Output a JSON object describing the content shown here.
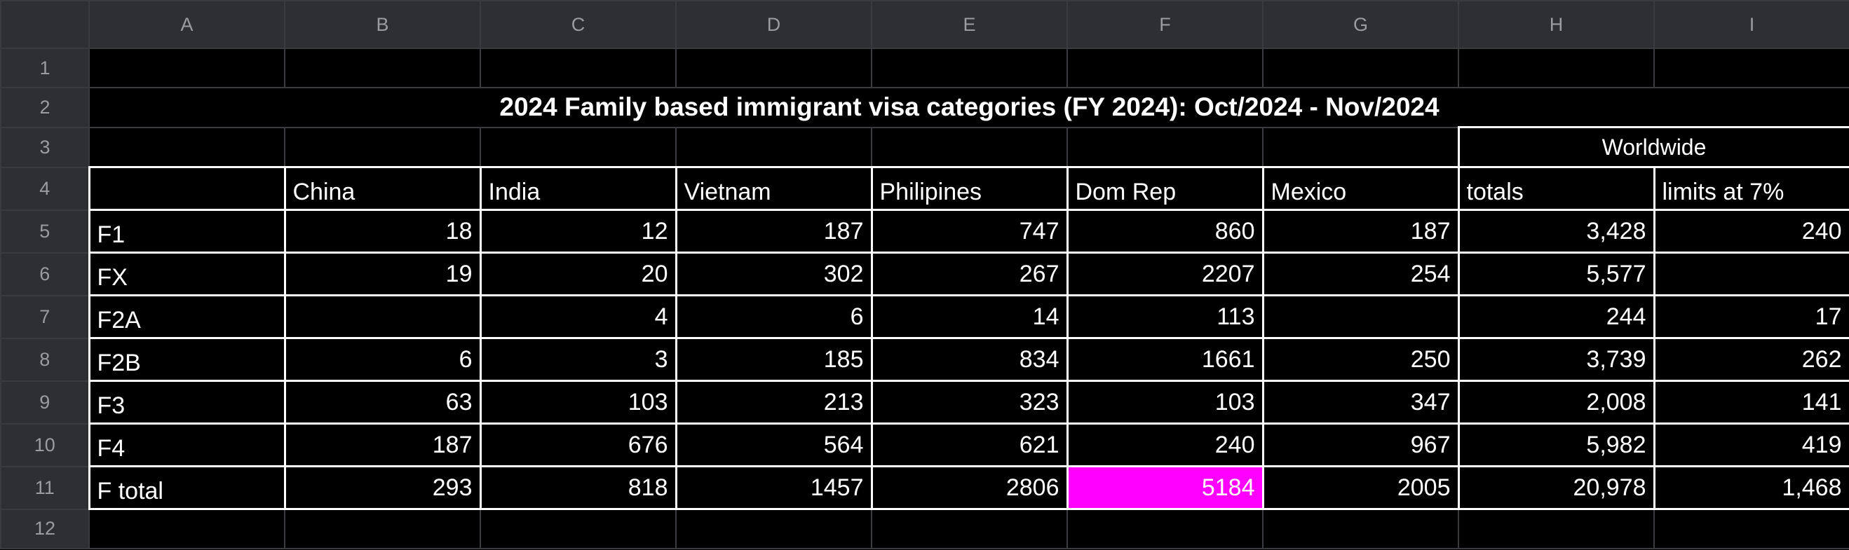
{
  "columns": [
    "A",
    "B",
    "C",
    "D",
    "E",
    "F",
    "G",
    "H",
    "I"
  ],
  "row_numbers": [
    "1",
    "2",
    "3",
    "4",
    "5",
    "6",
    "7",
    "8",
    "9",
    "10",
    "11",
    "12"
  ],
  "title": "2024 Family based immigrant visa categories (FY 2024): Oct/2024 - Nov/2024",
  "worldwide_label": "Worldwide",
  "headers": [
    "",
    "China",
    "India",
    "Vietnam",
    "Philipines",
    "Dom Rep",
    "Mexico",
    "totals",
    "limits at 7%"
  ],
  "rows": [
    [
      "F1",
      "18",
      "12",
      "187",
      "747",
      "860",
      "187",
      "3,428",
      "240"
    ],
    [
      "FX",
      "19",
      "20",
      "302",
      "267",
      "2207",
      "254",
      "5,577",
      ""
    ],
    [
      "F2A",
      "",
      "4",
      "6",
      "14",
      "113",
      "",
      "244",
      "17"
    ],
    [
      "F2B",
      "6",
      "3",
      "185",
      "834",
      "1661",
      "250",
      "3,739",
      "262"
    ],
    [
      "F3",
      "63",
      "103",
      "213",
      "323",
      "103",
      "347",
      "2,008",
      "141"
    ],
    [
      "F4",
      "187",
      "676",
      "564",
      "621",
      "240",
      "967",
      "5,982",
      "419"
    ],
    [
      "F total",
      "293",
      "818",
      "1457",
      "2806",
      "5184",
      "2005",
      "20,978",
      "1,468"
    ]
  ],
  "highlight": {
    "row": 6,
    "col": 5,
    "color": "#ff00ff"
  }
}
